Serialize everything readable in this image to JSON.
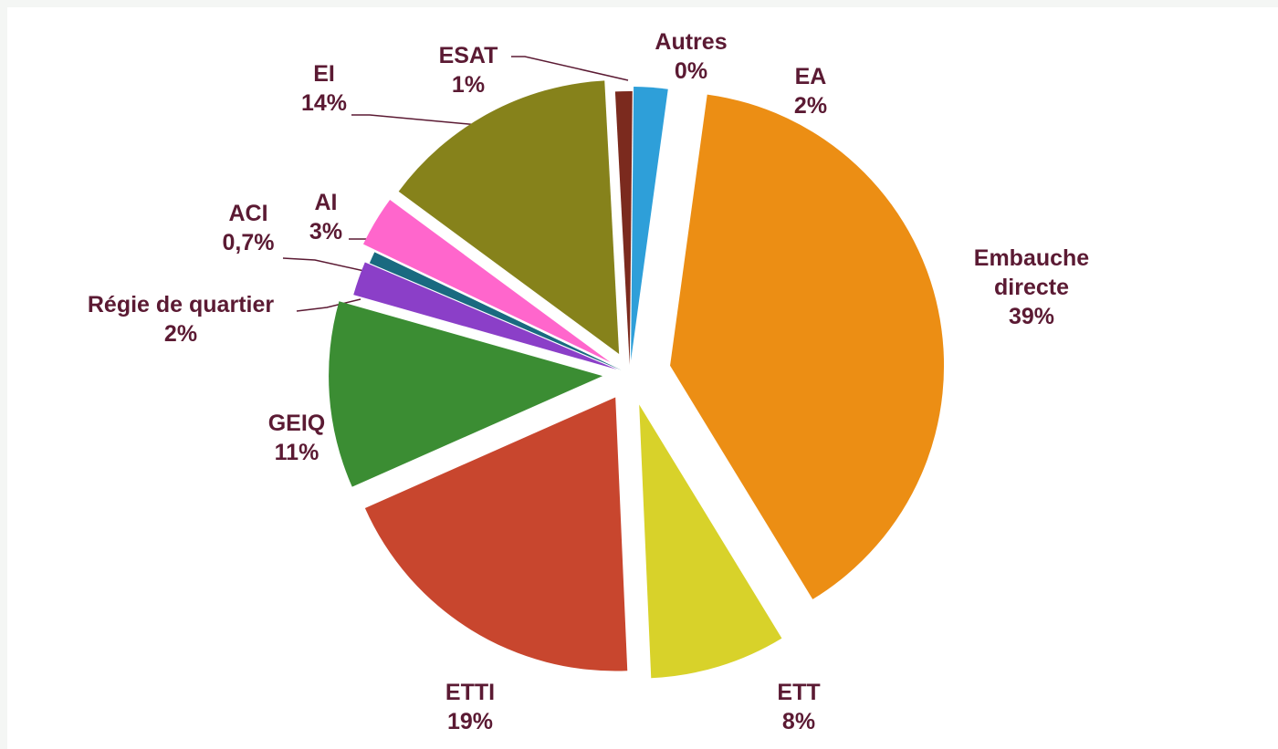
{
  "chart_data": {
    "type": "pie",
    "categories": [
      "EA",
      "Embauche directe",
      "ETT",
      "ETTI",
      "GEIQ",
      "Régie de quartier",
      "ACI",
      "AI",
      "EI",
      "ESAT",
      "Autres"
    ],
    "values": [
      2,
      39,
      8,
      19,
      11,
      2,
      0.7,
      3,
      14,
      1,
      0
    ],
    "value_labels": [
      "2%",
      "39%",
      "8%",
      "19%",
      "11%",
      "2%",
      "0,7%",
      "3%",
      "14%",
      "1%",
      "0%"
    ],
    "colors": [
      "#2e9fd9",
      "#ec8e14",
      "#d8d22a",
      "#c8462e",
      "#3b8d33",
      "#8b3fc8",
      "#1a6a80",
      "#ff66cc",
      "#86821b",
      "#7b2a1e",
      "#9bb29a"
    ]
  }
}
